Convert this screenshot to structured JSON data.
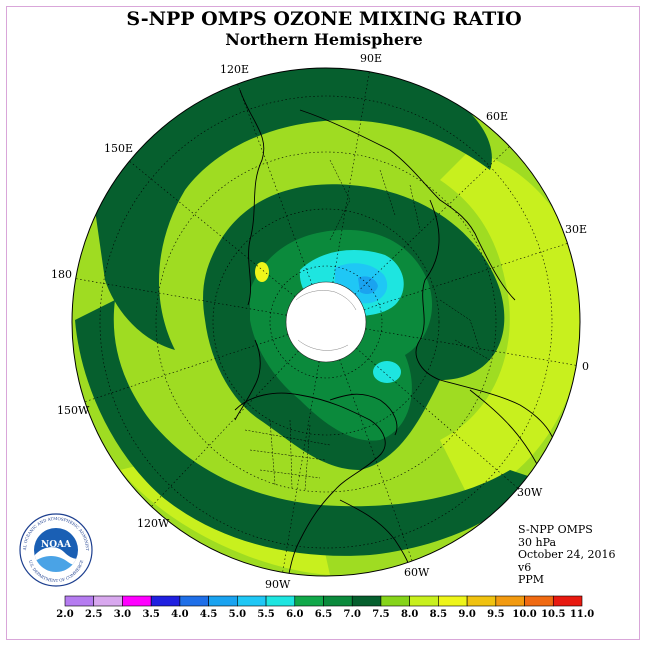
{
  "header": {
    "title": "S-NPP OMPS OZONE MIXING RATIO",
    "subtitle": "Northern Hemisphere"
  },
  "map": {
    "longitude_labels": [
      "90E",
      "60E",
      "30E",
      "0",
      "30W",
      "60W",
      "90W",
      "120W",
      "150W",
      "180",
      "150E",
      "120E"
    ]
  },
  "info": {
    "instrument": "S-NPP OMPS",
    "level": "30 hPa",
    "date": "October 24, 2016",
    "version": "v6",
    "units": "PPM"
  },
  "colorbar": {
    "ticks": [
      "2.0",
      "2.5",
      "3.0",
      "3.5",
      "4.0",
      "4.5",
      "5.0",
      "5.5",
      "6.0",
      "6.5",
      "7.0",
      "7.5",
      "8.0",
      "8.5",
      "9.0",
      "9.5",
      "10.0",
      "10.5",
      "11.0"
    ],
    "colors": [
      "#b57cf0",
      "#d8a8ee",
      "#ff00ff",
      "#2020e0",
      "#1f6fe8",
      "#1aa3f0",
      "#1fc7f5",
      "#1ee5e0",
      "#11a84a",
      "#0b8a3c",
      "#065f2e",
      "#86d41a",
      "#c8f01e",
      "#eef51a",
      "#f0c210",
      "#f29a10",
      "#f06a12",
      "#e81a10",
      "#8a5a3c"
    ]
  },
  "logo": {
    "text": "NOAA",
    "ring_text": "NATIONAL OCEANIC AND ATMOSPHERIC ADMINISTRATION",
    "ring_text_bottom": "U.S. DEPARTMENT OF COMMERCE"
  }
}
